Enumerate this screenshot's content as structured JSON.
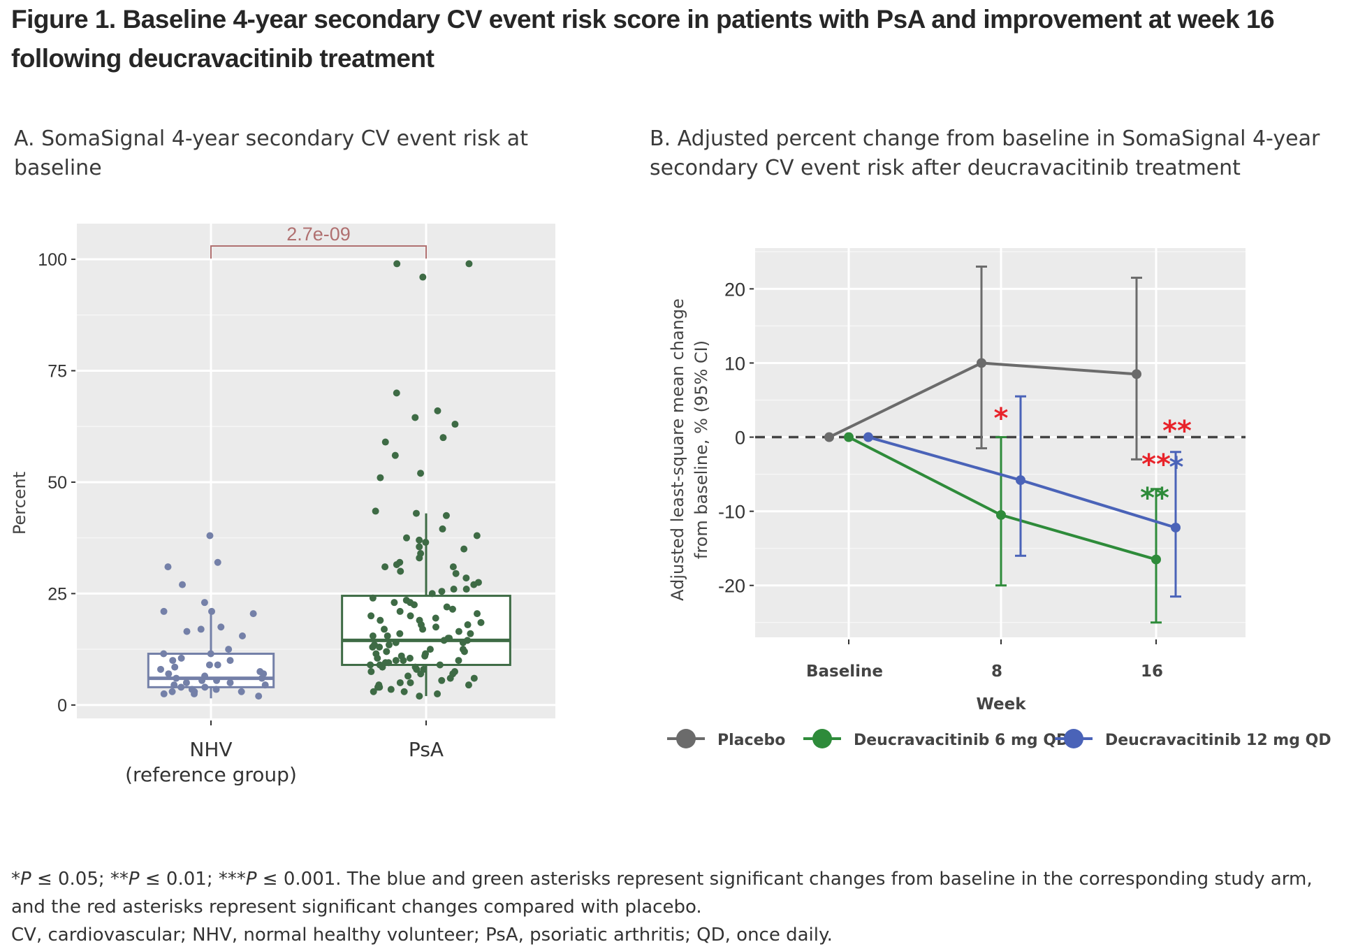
{
  "figure": {
    "title": "Figure 1. Baseline 4-year secondary CV event risk score in patients with PsA and improvement at week 16 following deucravacitinib treatment"
  },
  "footnotes": {
    "line1_parts": [
      "*",
      "P",
      " ≤ 0.05; **",
      "P",
      " ≤ 0.01; ***",
      "P",
      " ≤ 0.001. The blue and green asterisks represent significant changes from baseline in the corresponding study arm, and the red asterisks represent significant changes compared with placebo."
    ],
    "line2": "CV, cardiovascular; NHV, normal healthy volunteer; PsA, psoriatic arthritis; QD, once daily."
  },
  "chart_data": [
    {
      "id": "A",
      "type": "box",
      "title": "A. SomaSignal 4-year secondary CV event risk at baseline",
      "xlabel": "",
      "ylabel": "Percent",
      "ylim": [
        -3,
        108
      ],
      "yticks": [
        0,
        25,
        50,
        75,
        100
      ],
      "grid": true,
      "categories": [
        "NHV\n(reference group)",
        "PsA"
      ],
      "category_lines": [
        [
          "NHV",
          "(reference group)"
        ],
        [
          "PsA"
        ]
      ],
      "comparison": {
        "label": "2.7e-09",
        "between": [
          "NHV",
          "PsA"
        ],
        "color": "#b07070"
      },
      "series": [
        {
          "name": "NHV",
          "color": "#7480a8",
          "box": {
            "q1": 4,
            "median": 6,
            "q3": 11.5,
            "whisker_low": 1.5,
            "whisker_high": 21
          },
          "points": [
            38,
            32,
            31,
            27,
            23,
            21,
            21,
            20.5,
            17.5,
            17,
            16.5,
            15.5,
            12.5,
            11.5,
            11.5,
            10.5,
            10,
            10,
            9,
            9,
            8.5,
            8,
            7.5,
            7,
            7,
            6.5,
            6,
            6,
            5.5,
            5.5,
            5,
            5,
            4.5,
            4.5,
            4,
            4,
            3.5,
            3.5,
            3,
            3,
            3,
            2.5,
            2.5,
            2
          ]
        },
        {
          "name": "PsA",
          "color": "#3e6b45",
          "box": {
            "q1": 9,
            "median": 14.5,
            "q3": 24.5,
            "whisker_low": 2,
            "whisker_high": 43
          },
          "points": [
            99,
            99,
            96,
            70,
            66,
            64.5,
            63,
            60,
            59,
            56,
            52,
            51,
            43.5,
            43,
            42.5,
            39.5,
            38,
            37.5,
            37,
            36.5,
            35.5,
            35,
            34,
            33,
            32,
            31.5,
            31,
            31,
            30,
            29.5,
            28.5,
            27.5,
            27,
            26,
            26,
            25.5,
            25,
            24,
            23.5,
            23,
            23,
            22.5,
            22,
            21.5,
            21,
            20.5,
            20,
            20,
            19.5,
            19,
            19,
            18.5,
            18,
            18,
            17.5,
            17,
            17,
            16.5,
            16,
            16,
            15.5,
            15.5,
            15,
            15,
            14.5,
            14.5,
            14,
            14,
            13.5,
            13.5,
            13,
            13,
            12.5,
            12.5,
            12,
            12,
            11.5,
            11.5,
            11,
            11,
            10.5,
            10.5,
            10,
            10,
            10,
            9.5,
            9.5,
            9,
            9,
            9,
            8.5,
            8.5,
            8,
            8,
            7.5,
            7.5,
            7,
            7,
            6.5,
            6,
            6,
            5.5,
            5,
            5,
            4.5,
            4.5,
            4,
            4,
            3.5,
            3,
            3,
            2.5,
            2
          ]
        }
      ]
    },
    {
      "id": "B",
      "type": "line",
      "title": "B. Adjusted percent change from baseline in SomaSignal 4-year secondary CV event risk after deucravacitinib treatment",
      "xlabel": "Week",
      "ylabel": "Adjusted least-square mean change from baseline, % (95% CI)",
      "ylabel_lines": [
        "Adjusted least-square mean change",
        "from baseline, % (95% CI)"
      ],
      "categories": [
        "Baseline",
        "8",
        "16"
      ],
      "ylim": [
        -27,
        25.5
      ],
      "yticks": [
        20,
        10,
        0,
        -10,
        -20
      ],
      "grid": true,
      "reference_line": 0,
      "legend_position": "bottom",
      "series": [
        {
          "name": "Placebo",
          "color": "#6b6b6b",
          "values": [
            0,
            10,
            8.5
          ],
          "ci_low": [
            null,
            -1.5,
            -3
          ],
          "ci_high": [
            null,
            23,
            21.5
          ]
        },
        {
          "name": "Deucravacitinib 6 mg QD",
          "color": "#2e8b3a",
          "values": [
            0,
            -10.5,
            -16.5
          ],
          "ci_low": [
            null,
            -20,
            -25
          ],
          "ci_high": [
            null,
            0,
            -7
          ]
        },
        {
          "name": "Deucravacitinib 12 mg QD",
          "color": "#4a63b8",
          "values": [
            0,
            -5.8,
            -12.2
          ],
          "ci_low": [
            null,
            -16,
            -21.5
          ],
          "ci_high": [
            null,
            5.5,
            -2
          ]
        }
      ],
      "annotations": [
        {
          "text": "*",
          "color": "#e8232a",
          "series": "Deucravacitinib 6 mg QD",
          "week": "8",
          "meaning": "vs placebo"
        },
        {
          "text": "**",
          "color": "#e8232a",
          "series": "Deucravacitinib 12 mg QD",
          "week": "16",
          "meaning": "vs placebo"
        },
        {
          "text": "**",
          "color": "#e8232a",
          "series": "Deucravacitinib 6 mg QD",
          "week": "16",
          "meaning": "vs placebo"
        },
        {
          "text": "*",
          "color": "#4a63b8",
          "series": "Deucravacitinib 12 mg QD",
          "week": "16",
          "meaning": "vs baseline"
        },
        {
          "text": "**",
          "color": "#2e8b3a",
          "series": "Deucravacitinib 6 mg QD",
          "week": "16",
          "meaning": "vs baseline"
        }
      ]
    }
  ]
}
